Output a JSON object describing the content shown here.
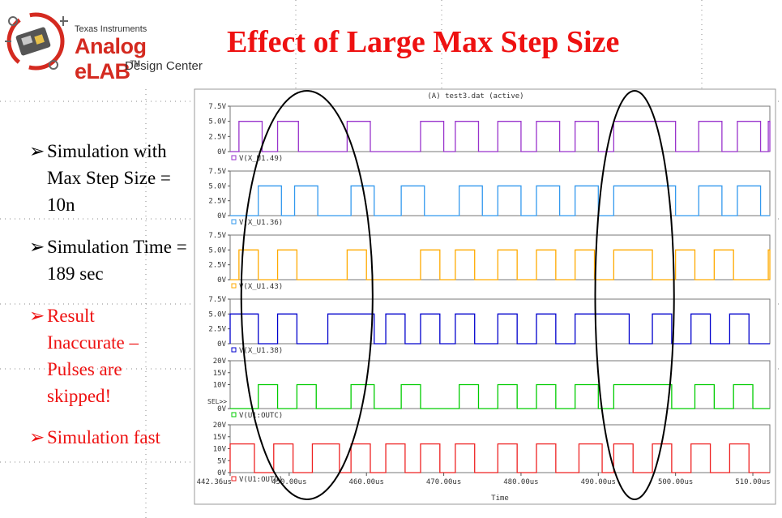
{
  "slide": {
    "logo_company": "Texas Instruments",
    "logo_name": "Analog eLAB",
    "logo_tm": "TM",
    "logo_sub": "Design Center",
    "title": "Effect of Large Max Step Size"
  },
  "bullets": [
    {
      "text": "Simulation with Max Step Size = 10n",
      "color": "#000000"
    },
    {
      "text": "Simulation Time = 189 sec",
      "color": "#000000"
    },
    {
      "text": "Result Inaccurate – Pulses are skipped!",
      "color": "#ee1111"
    },
    {
      "text": "Simulation fast",
      "color": "#ee1111"
    }
  ],
  "plot": {
    "header": "(A) test3.dat (active)",
    "x_axis_title": "Time",
    "sel_marker": "SEL>>",
    "x_tick_labels": [
      "442.36us",
      "450.00us",
      "460.00us",
      "470.00us",
      "480.00us",
      "490.00us",
      "500.00us",
      "510.00us"
    ],
    "x_tick_values": [
      442.36,
      450,
      460,
      470,
      480,
      490,
      500,
      510
    ],
    "x_range": [
      442.36,
      512.2
    ],
    "highlight_ellipses": [
      [
        443.8,
        460.8
      ],
      [
        489.6,
        499.8
      ]
    ],
    "traces": [
      {
        "name": "V(X_U1.49)",
        "color": "#9933cc",
        "y_ticks": [
          "7.5V",
          "5.0V",
          "2.5V",
          "0V"
        ],
        "y_max": 7.5,
        "high": 5,
        "pulses": [
          [
            443.5,
            446.5
          ],
          [
            448.5,
            451.2
          ],
          [
            457.5,
            460.5
          ],
          [
            467.0,
            470.0
          ],
          [
            471.5,
            474.5
          ],
          [
            477.0,
            480.0
          ],
          [
            482.0,
            485.0
          ],
          [
            487.0,
            490.0
          ],
          [
            492.0,
            500.0
          ],
          [
            503.0,
            506.0
          ],
          [
            508.0,
            511.0
          ],
          [
            512.0,
            513.0
          ]
        ]
      },
      {
        "name": "V(X_U1.36)",
        "color": "#3399ee",
        "y_ticks": [
          "7.5V",
          "5.0V",
          "2.5V",
          "0V"
        ],
        "y_max": 7.5,
        "high": 5,
        "pulses": [
          [
            446.0,
            449.0
          ],
          [
            450.7,
            453.7
          ],
          [
            458.0,
            461.0
          ],
          [
            464.5,
            467.5
          ],
          [
            472.0,
            475.0
          ],
          [
            477.0,
            480.0
          ],
          [
            482.0,
            485.0
          ],
          [
            487.0,
            490.0
          ],
          [
            492.0,
            500.0
          ],
          [
            503.0,
            506.0
          ],
          [
            508.0,
            511.0
          ]
        ]
      },
      {
        "name": "V(X_U1.43)",
        "color": "#ffaa00",
        "y_ticks": [
          "7.5V",
          "5.0V",
          "2.5V",
          "0V"
        ],
        "y_max": 7.5,
        "high": 5,
        "pulses": [
          [
            443.5,
            446.0
          ],
          [
            448.5,
            451.0
          ],
          [
            457.5,
            460.0
          ],
          [
            467.0,
            469.5
          ],
          [
            471.5,
            474.0
          ],
          [
            477.0,
            479.5
          ],
          [
            482.0,
            484.5
          ],
          [
            487.0,
            489.5
          ],
          [
            492.0,
            497.0
          ],
          [
            500.0,
            502.5
          ],
          [
            505.0,
            507.5
          ],
          [
            512.0,
            513.0
          ]
        ]
      },
      {
        "name": "V(X_U1.38)",
        "color": "#0000cc",
        "y_ticks": [
          "7.5V",
          "5.0V",
          "2.5V",
          "0V"
        ],
        "y_max": 7.5,
        "high": 5,
        "pulses": [
          [
            442.36,
            446.0
          ],
          [
            448.5,
            451.0
          ],
          [
            455.0,
            461.0
          ],
          [
            462.5,
            465.0
          ],
          [
            467.0,
            469.5
          ],
          [
            471.5,
            474.0
          ],
          [
            477.0,
            479.5
          ],
          [
            482.0,
            484.5
          ],
          [
            487.0,
            494.0
          ],
          [
            497.0,
            499.5
          ],
          [
            502.0,
            504.5
          ],
          [
            507.0,
            509.5
          ]
        ]
      },
      {
        "name": "V(U1:OUTC)",
        "color": "#00cc00",
        "y_ticks": [
          "20V",
          "15V",
          "10V",
          "0V"
        ],
        "y_max": 20,
        "high": 10,
        "pulses": [
          [
            446.0,
            448.5
          ],
          [
            451.0,
            453.5
          ],
          [
            458.0,
            461.0
          ],
          [
            464.5,
            467.0
          ],
          [
            472.0,
            474.5
          ],
          [
            477.0,
            479.5
          ],
          [
            482.0,
            484.5
          ],
          [
            487.0,
            490.0
          ],
          [
            492.0,
            499.5
          ],
          [
            502.5,
            505.0
          ],
          [
            507.5,
            510.0
          ]
        ]
      },
      {
        "name": "V(U1:OUTD)",
        "color": "#ee2222",
        "y_ticks": [
          "20V",
          "15V",
          "10V",
          "5V",
          "0V"
        ],
        "y_max": 20,
        "high": 12,
        "pulses": [
          [
            442.36,
            445.5
          ],
          [
            448.0,
            450.5
          ],
          [
            453.0,
            456.5
          ],
          [
            458.0,
            460.5
          ],
          [
            462.5,
            465.0
          ],
          [
            467.0,
            469.5
          ],
          [
            471.5,
            474.0
          ],
          [
            477.0,
            479.5
          ],
          [
            482.0,
            484.5
          ],
          [
            487.5,
            490.5
          ],
          [
            492.0,
            494.5
          ],
          [
            497.0,
            499.5
          ],
          [
            502.0,
            504.5
          ],
          [
            507.0,
            509.5
          ]
        ]
      }
    ]
  }
}
